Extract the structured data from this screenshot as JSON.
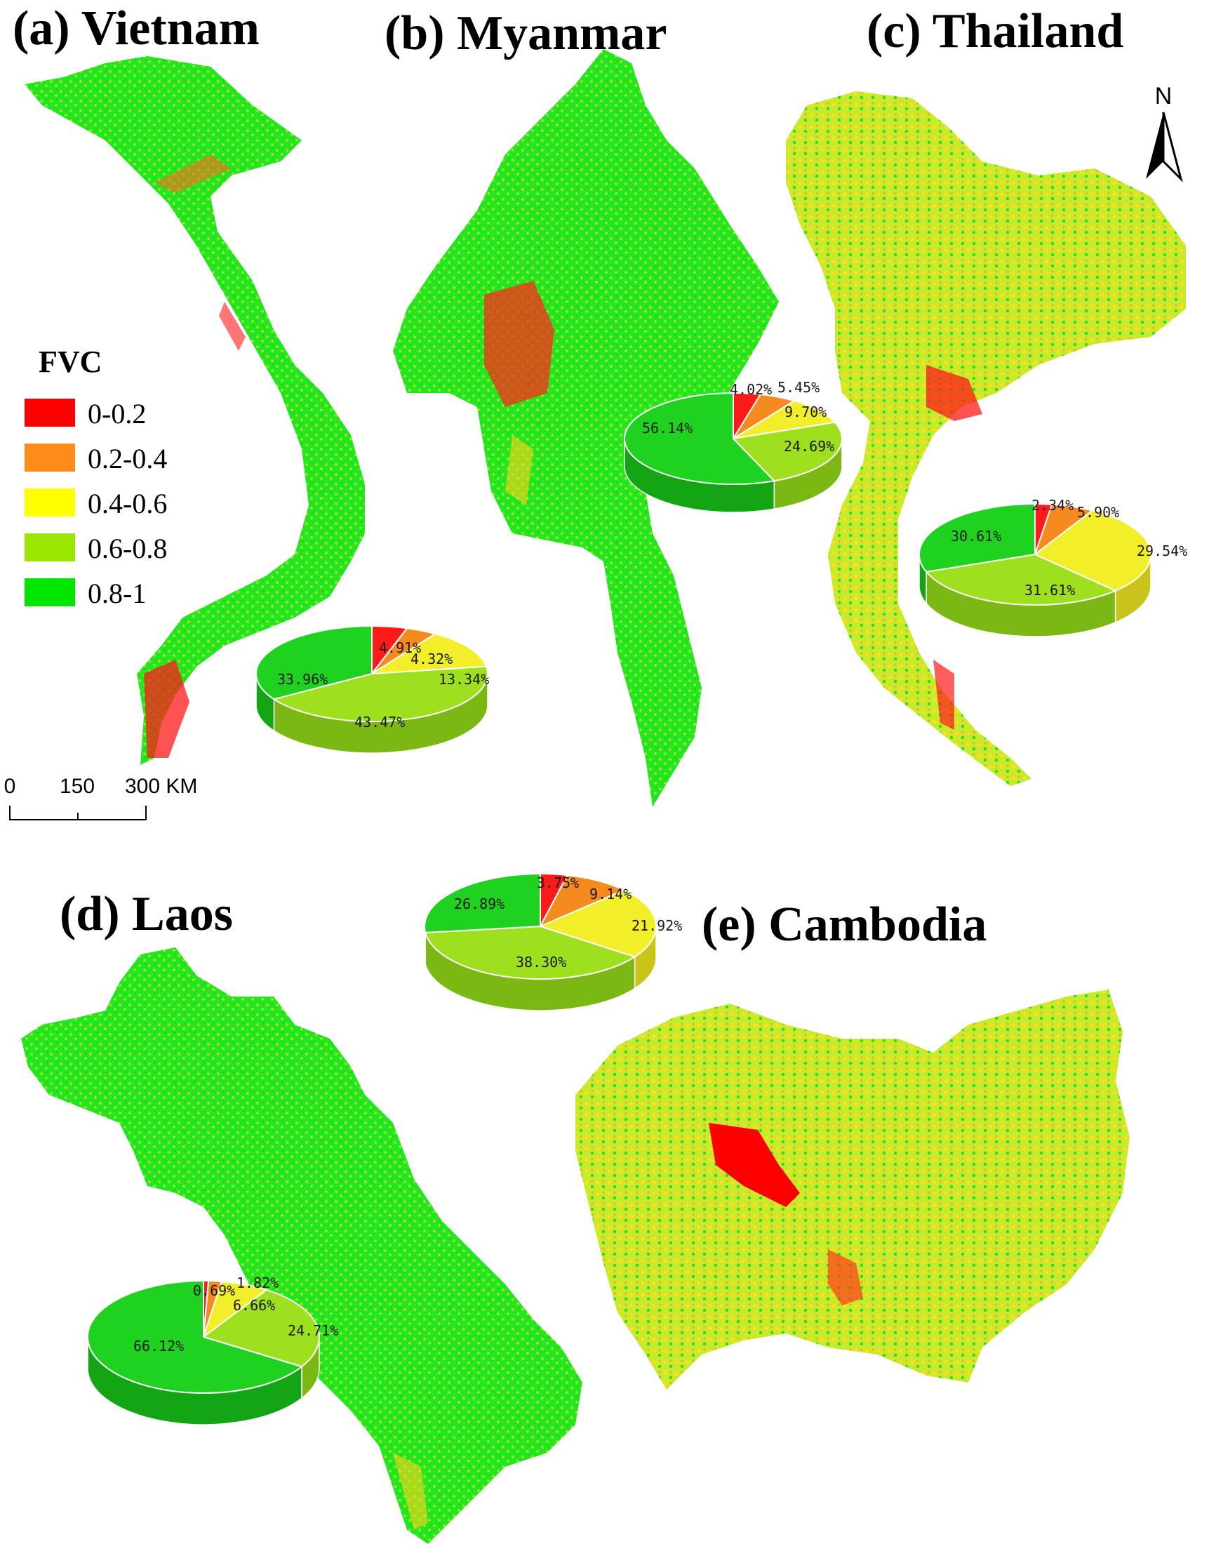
{
  "panels": [
    {
      "id": "vietnam",
      "title": "(a) Vietnam"
    },
    {
      "id": "myanmar",
      "title": "(b) Myanmar"
    },
    {
      "id": "thailand",
      "title": "(c) Thailand"
    },
    {
      "id": "laos",
      "title": "(d) Laos"
    },
    {
      "id": "cambodia",
      "title": "(e) Cambodia"
    }
  ],
  "legend": {
    "title": "FVC",
    "classes": [
      {
        "label": "0-0.2",
        "color": "#ff0000"
      },
      {
        "label": "0.2-0.4",
        "color": "#ff8c1a"
      },
      {
        "label": "0.4-0.6",
        "color": "#ffff00"
      },
      {
        "label": "0.6-0.8",
        "color": "#99e600"
      },
      {
        "label": "0.8-1",
        "color": "#00e600"
      }
    ]
  },
  "north_arrow": {
    "label": "N"
  },
  "scale_bar": {
    "ticks": [
      "0",
      "150",
      "300 KM"
    ]
  },
  "chart_data": [
    {
      "type": "pie",
      "region": "Vietnam",
      "categories": [
        "0-0.2",
        "0.2-0.4",
        "0.4-0.6",
        "0.6-0.8",
        "0.8-1"
      ],
      "values": [
        4.91,
        4.32,
        13.34,
        43.47,
        33.96
      ],
      "labels": [
        "4.91%",
        "4.32%",
        "13.34%",
        "43.47%",
        "33.96%"
      ]
    },
    {
      "type": "pie",
      "region": "Myanmar",
      "categories": [
        "0-0.2",
        "0.2-0.4",
        "0.4-0.6",
        "0.6-0.8",
        "0.8-1"
      ],
      "values": [
        4.02,
        5.45,
        9.7,
        24.69,
        56.14
      ],
      "labels": [
        "4.02%",
        "5.45%",
        "9.70%",
        "24.69%",
        "56.14%"
      ]
    },
    {
      "type": "pie",
      "region": "Thailand",
      "categories": [
        "0-0.2",
        "0.2-0.4",
        "0.4-0.6",
        "0.6-0.8",
        "0.8-1"
      ],
      "values": [
        2.34,
        5.9,
        29.54,
        31.61,
        30.61
      ],
      "labels": [
        "2.34%",
        "5.90%",
        "29.54%",
        "31.61%",
        "30.61%"
      ]
    },
    {
      "type": "pie",
      "region": "Laos",
      "categories": [
        "0-0.2",
        "0.2-0.4",
        "0.4-0.6",
        "0.6-0.8",
        "0.8-1"
      ],
      "values": [
        0.69,
        1.82,
        6.66,
        24.71,
        66.12
      ],
      "labels": [
        "0.69%",
        "1.82%",
        "6.66%",
        "24.71%",
        "66.12%"
      ]
    },
    {
      "type": "pie",
      "region": "Cambodia",
      "categories": [
        "0-0.2",
        "0.2-0.4",
        "0.4-0.6",
        "0.6-0.8",
        "0.8-1"
      ],
      "values": [
        3.75,
        9.14,
        21.92,
        38.3,
        26.89
      ],
      "labels": [
        "3.75%",
        "9.14%",
        "21.92%",
        "38.30%",
        "26.89%"
      ]
    }
  ]
}
